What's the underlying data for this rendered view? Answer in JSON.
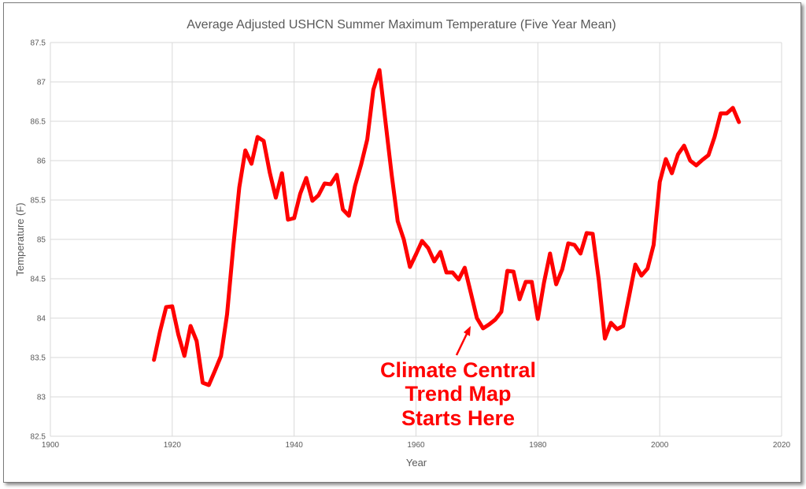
{
  "chart_data": {
    "type": "line",
    "title": "Average Adjusted USHCN Summer Maximum Temperature (Five Year Mean)",
    "xlabel": "Year",
    "ylabel": "Temperature (F)",
    "xlim": [
      1900,
      2020
    ],
    "ylim": [
      82.5,
      87.5
    ],
    "x_ticks": [
      "1900",
      "1920",
      "1940",
      "1960",
      "1980",
      "2000",
      "2020"
    ],
    "y_ticks": [
      "82.5",
      "83",
      "83.5",
      "84",
      "84.5",
      "85",
      "85.5",
      "86",
      "86.5",
      "87",
      "87.5"
    ],
    "grid": true,
    "legend": "none",
    "line_color": "#ff0000",
    "series": [
      {
        "x": [
          1917,
          1918,
          1919,
          1920,
          1921,
          1922,
          1923,
          1924,
          1925,
          1926,
          1927,
          1928,
          1929,
          1930,
          1931,
          1932,
          1933,
          1934,
          1935,
          1936,
          1937,
          1938,
          1939,
          1940,
          1941,
          1942,
          1943,
          1944,
          1945,
          1946,
          1947,
          1948,
          1949,
          1950,
          1951,
          1952,
          1953,
          1954,
          1955,
          1956,
          1957,
          1958,
          1959,
          1960,
          1961,
          1962,
          1963,
          1964,
          1965,
          1966,
          1967,
          1968,
          1969,
          1970,
          1971,
          1972,
          1973,
          1974,
          1975,
          1976,
          1977,
          1978,
          1979,
          1980,
          1981,
          1982,
          1983,
          1984,
          1985,
          1986,
          1987,
          1988,
          1989,
          1990,
          1991,
          1992,
          1993,
          1994,
          1995,
          1996,
          1997,
          1998,
          1999,
          2000,
          2001,
          2002,
          2003,
          2004,
          2005,
          2006,
          2007,
          2008,
          2009,
          2010,
          2011,
          2012,
          2013
        ],
        "values": [
          83.47,
          83.83,
          84.14,
          84.15,
          83.79,
          83.52,
          83.9,
          83.71,
          83.18,
          83.15,
          83.33,
          83.52,
          84.05,
          84.9,
          85.66,
          86.13,
          85.96,
          86.3,
          86.25,
          85.85,
          85.53,
          85.84,
          85.25,
          85.27,
          85.58,
          85.78,
          85.49,
          85.56,
          85.71,
          85.7,
          85.82,
          85.38,
          85.3,
          85.68,
          85.95,
          86.27,
          86.9,
          87.15,
          86.49,
          85.83,
          85.23,
          85.0,
          84.65,
          84.81,
          84.98,
          84.89,
          84.72,
          84.84,
          84.58,
          84.58,
          84.49,
          84.64,
          84.32,
          84.0,
          83.87,
          83.92,
          83.98,
          84.08,
          84.6,
          84.59,
          84.24,
          84.46,
          84.46,
          83.99,
          84.45,
          84.82,
          84.43,
          84.62,
          84.95,
          84.93,
          84.82,
          85.08,
          85.07,
          84.48,
          83.74,
          83.94,
          83.86,
          83.9,
          84.29,
          84.68,
          84.54,
          84.63,
          84.93,
          85.73,
          86.02,
          85.84,
          86.08,
          86.19,
          86.0,
          85.94,
          86.01,
          86.07,
          86.3,
          86.6,
          86.6,
          86.67,
          86.49
        ]
      }
    ]
  },
  "annotation": {
    "lines": [
      "Climate Central",
      "Trend Map",
      "Starts Here"
    ]
  }
}
